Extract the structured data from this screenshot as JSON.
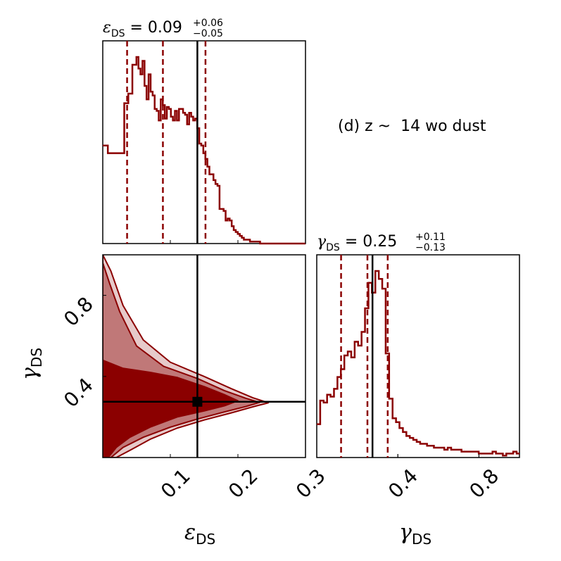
{
  "chart_data": {
    "type": "corner",
    "annotation": "(d) z ~  14 wo dust",
    "colors": {
      "hist": "#8b0000",
      "contour_inner": "#8b0000",
      "contour_outer": "#c07878",
      "contour_faint": "#e6caca",
      "truth": "#000000"
    },
    "parameters": [
      {
        "symbol": "ε",
        "subscript": "DS",
        "title_value": "0.09",
        "title_plus": "+0.06",
        "title_minus": "−0.05",
        "range": [
          0.0,
          0.3
        ],
        "ticks": [
          0.1,
          0.2,
          0.3
        ],
        "tick_labels": [
          "0.1",
          "0.2",
          "0.3"
        ],
        "quantiles": [
          0.036,
          0.089,
          0.152
        ],
        "truth": 0.14,
        "hist": {
          "edges": [
            0.0,
            0.0075,
            0.0108,
            0.0138,
            0.0168,
            0.0198,
            0.0228,
            0.0258,
            0.0288,
            0.0318,
            0.0348,
            0.0378,
            0.0408,
            0.0438,
            0.0468,
            0.0498,
            0.0528,
            0.0558,
            0.0588,
            0.0618,
            0.0648,
            0.0678,
            0.0708,
            0.0738,
            0.0768,
            0.0798,
            0.0828,
            0.0858,
            0.0888,
            0.0918,
            0.0948,
            0.0978,
            0.1008,
            0.1038,
            0.1068,
            0.1098,
            0.1128,
            0.1158,
            0.1188,
            0.1218,
            0.1248,
            0.1278,
            0.1308,
            0.1338,
            0.1368,
            0.1398,
            0.1428,
            0.1458,
            0.1488,
            0.1518,
            0.1548,
            0.1578,
            0.1608,
            0.1638,
            0.1668,
            0.1698,
            0.1728,
            0.1758,
            0.1788,
            0.1818,
            0.1848,
            0.1878,
            0.1908,
            0.1938,
            0.1968,
            0.1998,
            0.2028,
            0.2058,
            0.2088,
            0.2118,
            0.2148,
            0.2178,
            0.2208,
            0.2238,
            0.2268,
            0.2298,
            0.2328,
            0.2358,
            0.3
          ],
          "counts": [
            0.51,
            0.47,
            0.47,
            0.47,
            0.47,
            0.47,
            0.47,
            0.47,
            0.47,
            0.73,
            0.73,
            0.78,
            0.78,
            0.93,
            0.93,
            0.97,
            0.91,
            0.88,
            0.95,
            0.82,
            0.75,
            0.88,
            0.79,
            0.77,
            0.7,
            0.69,
            0.64,
            0.75,
            0.72,
            0.65,
            0.71,
            0.7,
            0.66,
            0.64,
            0.69,
            0.64,
            0.7,
            0.7,
            0.68,
            0.67,
            0.62,
            0.68,
            0.66,
            0.64,
            0.65,
            0.6,
            0.52,
            0.51,
            0.47,
            0.44,
            0.4,
            0.36,
            0.36,
            0.33,
            0.31,
            0.3,
            0.18,
            0.18,
            0.17,
            0.12,
            0.13,
            0.12,
            0.09,
            0.07,
            0.06,
            0.05,
            0.04,
            0.03,
            0.02,
            0.02,
            0.02,
            0.01,
            0.01,
            0.01,
            0.01,
            0.01,
            0.0,
            0.0
          ]
        }
      },
      {
        "symbol": "γ",
        "subscript": "DS",
        "title_value": "0.25",
        "title_plus": "+0.11",
        "title_minus": "−0.13",
        "range": [
          0.0,
          1.0
        ],
        "ticks": [
          0.4,
          0.8
        ],
        "tick_labels": [
          "0.4",
          "0.8"
        ],
        "quantiles": [
          0.12,
          0.25,
          0.35
        ],
        "truth": 0.275,
        "hist": {
          "edges": [
            0.0,
            0.017,
            0.034,
            0.051,
            0.068,
            0.085,
            0.102,
            0.119,
            0.136,
            0.153,
            0.17,
            0.187,
            0.204,
            0.221,
            0.238,
            0.255,
            0.272,
            0.289,
            0.306,
            0.323,
            0.34,
            0.357,
            0.374,
            0.391,
            0.408,
            0.425,
            0.442,
            0.459,
            0.476,
            0.493,
            0.51,
            0.527,
            0.544,
            0.561,
            0.578,
            0.595,
            0.612,
            0.629,
            0.646,
            0.663,
            0.68,
            0.697,
            0.714,
            0.731,
            0.748,
            0.765,
            0.782,
            0.799,
            0.816,
            0.833,
            0.85,
            0.867,
            0.884,
            0.901,
            0.918,
            0.935,
            0.952,
            0.969,
            0.986,
            1.0
          ],
          "counts": [
            0.17,
            0.29,
            0.28,
            0.32,
            0.31,
            0.35,
            0.41,
            0.45,
            0.52,
            0.54,
            0.51,
            0.59,
            0.57,
            0.64,
            0.76,
            0.89,
            0.84,
            0.95,
            0.91,
            0.86,
            0.53,
            0.3,
            0.2,
            0.18,
            0.15,
            0.13,
            0.11,
            0.1,
            0.09,
            0.08,
            0.07,
            0.07,
            0.06,
            0.06,
            0.05,
            0.05,
            0.05,
            0.04,
            0.05,
            0.04,
            0.04,
            0.04,
            0.03,
            0.03,
            0.03,
            0.03,
            0.03,
            0.02,
            0.02,
            0.02,
            0.02,
            0.03,
            0.02,
            0.02,
            0.01,
            0.02,
            0.02,
            0.03,
            0.02
          ]
        }
      }
    ],
    "joint": {
      "marker": [
        0.14,
        0.275
      ],
      "contour_levels": [
        {
          "level": "faint",
          "points": [
            [
              0.0,
              1.0
            ],
            [
              0.012,
              0.92
            ],
            [
              0.03,
              0.75
            ],
            [
              0.06,
              0.58
            ],
            [
              0.1,
              0.47
            ],
            [
              0.15,
              0.4
            ],
            [
              0.19,
              0.34
            ],
            [
              0.222,
              0.295
            ],
            [
              0.245,
              0.27
            ],
            [
              0.222,
              0.25
            ],
            [
              0.19,
              0.22
            ],
            [
              0.15,
              0.185
            ],
            [
              0.11,
              0.145
            ],
            [
              0.07,
              0.09
            ],
            [
              0.04,
              0.035
            ],
            [
              0.02,
              0.0
            ],
            [
              0.0,
              0.0
            ]
          ]
        },
        {
          "level": "outer",
          "points": [
            [
              0.0,
              0.96
            ],
            [
              0.01,
              0.86
            ],
            [
              0.025,
              0.72
            ],
            [
              0.05,
              0.55
            ],
            [
              0.09,
              0.45
            ],
            [
              0.14,
              0.39
            ],
            [
              0.18,
              0.33
            ],
            [
              0.212,
              0.292
            ],
            [
              0.232,
              0.272
            ],
            [
              0.212,
              0.252
            ],
            [
              0.18,
              0.225
            ],
            [
              0.14,
              0.19
            ],
            [
              0.1,
              0.15
            ],
            [
              0.06,
              0.1
            ],
            [
              0.03,
              0.05
            ],
            [
              0.012,
              0.0
            ],
            [
              0.0,
              0.0
            ]
          ]
        },
        {
          "level": "inner",
          "points": [
            [
              0.0,
              0.48
            ],
            [
              0.03,
              0.44
            ],
            [
              0.07,
              0.42
            ],
            [
              0.11,
              0.395
            ],
            [
              0.15,
              0.35
            ],
            [
              0.18,
              0.31
            ],
            [
              0.2,
              0.28
            ],
            [
              0.18,
              0.255
            ],
            [
              0.15,
              0.23
            ],
            [
              0.11,
              0.2
            ],
            [
              0.07,
              0.15
            ],
            [
              0.04,
              0.1
            ],
            [
              0.02,
              0.05
            ],
            [
              0.008,
              0.0
            ],
            [
              0.0,
              0.0
            ]
          ]
        }
      ]
    }
  }
}
